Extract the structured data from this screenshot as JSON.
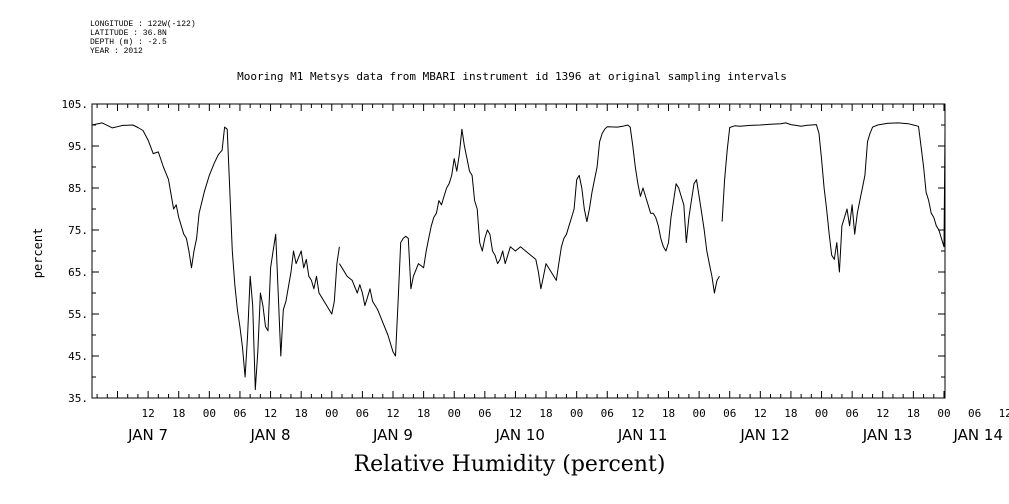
{
  "meta": {
    "longitude": "LONGITUDE : 122W(-122)",
    "latitude": "LATITUDE : 36.8N",
    "depth": "DEPTH (m) : -2.5",
    "year": "YEAR : 2012"
  },
  "chart_data": {
    "type": "line",
    "title": "Mooring M1 Metsys data from MBARI instrument id 1396 at original sampling intervals",
    "xlabel": "Relative Humidity (percent)",
    "ylabel": "percent",
    "ylim": [
      35,
      105
    ],
    "xlim": [
      1,
      168.2
    ],
    "x_unit": "hours since JAN 7 00:00 (2012)",
    "y_ticks": [
      "35.",
      "45.",
      "55.",
      "65.",
      "75.",
      "85.",
      "95.",
      "105."
    ],
    "hour_tick_labels": [
      "12",
      "18",
      "00",
      "06",
      "12",
      "18",
      "00",
      "06",
      "12",
      "18",
      "00",
      "06",
      "12",
      "18",
      "00",
      "06",
      "12",
      "18",
      "00",
      "06",
      "12",
      "18",
      "00",
      "06",
      "12",
      "18",
      "00",
      "06",
      "12",
      "18",
      "00",
      "06"
    ],
    "date_labels": [
      "JAN  7",
      "JAN  8",
      "JAN  9",
      "JAN 10",
      "JAN 11",
      "JAN 12",
      "JAN 13",
      "JAN 14"
    ],
    "series": [
      {
        "name": "",
        "segments": [
          [
            [
              1,
              100
            ],
            [
              3,
              100.5
            ],
            [
              5,
              99.3
            ],
            [
              6,
              99.6
            ],
            [
              7,
              99.9
            ],
            [
              9,
              100
            ],
            [
              10,
              99.4
            ],
            [
              11,
              98.7
            ],
            [
              12,
              96.4
            ],
            [
              13,
              93.2
            ],
            [
              14,
              93.6
            ],
            [
              15,
              90
            ],
            [
              15.5,
              88.5
            ],
            [
              16,
              87
            ],
            [
              17,
              80
            ],
            [
              17.5,
              81
            ],
            [
              18,
              78
            ],
            [
              19,
              74
            ],
            [
              19.5,
              73
            ],
            [
              20,
              70
            ],
            [
              20.5,
              66
            ],
            [
              21,
              70
            ],
            [
              21.5,
              73
            ],
            [
              22,
              79
            ],
            [
              23,
              84
            ],
            [
              24,
              88
            ],
            [
              25,
              91
            ],
            [
              25.8,
              93
            ],
            [
              26.5,
              94
            ],
            [
              27,
              99.5
            ],
            [
              27.5,
              99
            ],
            [
              28,
              85
            ],
            [
              28.5,
              70
            ],
            [
              29,
              62
            ],
            [
              29.5,
              56
            ],
            [
              30,
              52
            ],
            [
              30.5,
              47
            ],
            [
              31,
              40
            ],
            [
              31.5,
              50
            ],
            [
              32,
              64
            ],
            [
              32.5,
              57
            ],
            [
              33,
              37
            ],
            [
              33.5,
              46
            ],
            [
              34,
              60
            ],
            [
              34.5,
              57
            ],
            [
              35,
              52
            ],
            [
              35.5,
              51
            ],
            [
              36,
              66
            ],
            [
              36.5,
              70
            ],
            [
              37,
              74
            ],
            [
              37.5,
              60
            ],
            [
              38,
              45
            ],
            [
              38.5,
              56
            ],
            [
              39,
              58
            ],
            [
              40,
              65
            ],
            [
              40.5,
              70
            ],
            [
              41,
              67
            ],
            [
              42,
              70
            ],
            [
              42.5,
              66
            ],
            [
              43,
              68
            ],
            [
              43.5,
              64
            ],
            [
              44,
              63
            ],
            [
              44.5,
              61
            ],
            [
              45,
              64
            ],
            [
              45.5,
              60
            ],
            [
              46,
              59
            ],
            [
              46.5,
              58
            ],
            [
              47,
              57
            ],
            [
              48,
              55
            ],
            [
              48.5,
              58
            ],
            [
              49,
              67
            ],
            [
              49.5,
              71
            ]
          ],
          [
            [
              49.5,
              67
            ],
            [
              50,
              66
            ],
            [
              51,
              64
            ],
            [
              52,
              63
            ],
            [
              53,
              60
            ],
            [
              53.5,
              62
            ],
            [
              54,
              60
            ],
            [
              54.5,
              57
            ],
            [
              55,
              59
            ],
            [
              55.5,
              61
            ],
            [
              56,
              58
            ],
            [
              57,
              56
            ],
            [
              58,
              53
            ],
            [
              59,
              50
            ],
            [
              60,
              46
            ],
            [
              60.5,
              45
            ],
            [
              61,
              58
            ],
            [
              61.5,
              72
            ],
            [
              62,
              73
            ],
            [
              62.5,
              73.5
            ],
            [
              63,
              73
            ],
            [
              63.5,
              61
            ],
            [
              64,
              64
            ],
            [
              65,
              67
            ],
            [
              66,
              66
            ],
            [
              66.5,
              70
            ],
            [
              67,
              73
            ],
            [
              67.5,
              76
            ],
            [
              68,
              78
            ],
            [
              68.5,
              79
            ],
            [
              69,
              82
            ],
            [
              69.5,
              81
            ],
            [
              70,
              83
            ],
            [
              70.5,
              85
            ],
            [
              71,
              86
            ],
            [
              71.5,
              88
            ],
            [
              72,
              92
            ],
            [
              72.5,
              89
            ],
            [
              73,
              93
            ],
            [
              73.5,
              99
            ],
            [
              74,
              95
            ],
            [
              74.5,
              92
            ],
            [
              75,
              89
            ],
            [
              75.5,
              88
            ],
            [
              76,
              82
            ],
            [
              76.5,
              80
            ],
            [
              77,
              72
            ],
            [
              77.5,
              70
            ],
            [
              78,
              73
            ],
            [
              78.5,
              75
            ],
            [
              79,
              74
            ],
            [
              79.5,
              70
            ],
            [
              80,
              69
            ],
            [
              80.5,
              67
            ],
            [
              81,
              68
            ],
            [
              81.5,
              70
            ],
            [
              82,
              67
            ],
            [
              82.5,
              69
            ],
            [
              83,
              71
            ],
            [
              84,
              70
            ],
            [
              85,
              71
            ],
            [
              86,
              70
            ],
            [
              87,
              69
            ],
            [
              88,
              68
            ],
            [
              88.5,
              65
            ],
            [
              89,
              61
            ],
            [
              89.5,
              64
            ],
            [
              90,
              67
            ],
            [
              91,
              65
            ],
            [
              92,
              63
            ],
            [
              92.5,
              67
            ],
            [
              93,
              71
            ],
            [
              93.5,
              73
            ],
            [
              94,
              74
            ],
            [
              94.5,
              76
            ],
            [
              95,
              78
            ],
            [
              95.5,
              80
            ],
            [
              96,
              87
            ],
            [
              96.5,
              88
            ],
            [
              97,
              85
            ],
            [
              97.5,
              80
            ],
            [
              98,
              77
            ],
            [
              98.5,
              80
            ],
            [
              99,
              84
            ],
            [
              99.5,
              87
            ],
            [
              100,
              90
            ],
            [
              100.5,
              96
            ],
            [
              101,
              98
            ],
            [
              101.5,
              99
            ],
            [
              102,
              99.6
            ],
            [
              104,
              99.5
            ],
            [
              105,
              99.7
            ],
            [
              106,
              100
            ],
            [
              106.5,
              99.5
            ],
            [
              107,
              95
            ],
            [
              107.5,
              90
            ],
            [
              108,
              86
            ],
            [
              108.5,
              83
            ],
            [
              109,
              85
            ],
            [
              109.5,
              83
            ],
            [
              110,
              81
            ],
            [
              110.5,
              79
            ],
            [
              111,
              79
            ],
            [
              111.5,
              78
            ],
            [
              112,
              76
            ],
            [
              112.5,
              73
            ],
            [
              113,
              71
            ],
            [
              113.5,
              70
            ],
            [
              114,
              72
            ],
            [
              114.5,
              78
            ],
            [
              115,
              82
            ],
            [
              115.5,
              86
            ],
            [
              116,
              85
            ],
            [
              116.5,
              83
            ],
            [
              117,
              81
            ],
            [
              117.5,
              72
            ],
            [
              118,
              78
            ],
            [
              118.5,
              82
            ],
            [
              119,
              86
            ],
            [
              119.5,
              87
            ],
            [
              120,
              83
            ],
            [
              120.5,
              79
            ],
            [
              121,
              75
            ],
            [
              121.5,
              70
            ],
            [
              122,
              67
            ],
            [
              122.5,
              64
            ],
            [
              123,
              60
            ],
            [
              123.5,
              63
            ],
            [
              124,
              64
            ]
          ],
          [
            [
              124.5,
              77
            ],
            [
              125,
              87
            ],
            [
              125.5,
              94
            ],
            [
              126,
              99.4
            ],
            [
              127,
              99.8
            ],
            [
              128,
              99.7
            ],
            [
              130,
              99.9
            ],
            [
              132,
              100
            ],
            [
              134,
              100.2
            ],
            [
              136,
              100.3
            ],
            [
              137,
              100.5
            ],
            [
              138,
              100.1
            ],
            [
              139,
              99.9
            ],
            [
              140,
              99.7
            ],
            [
              141,
              99.9
            ],
            [
              142,
              100
            ],
            [
              143,
              100.1
            ],
            [
              143.5,
              98
            ],
            [
              144,
              92
            ],
            [
              144.5,
              85
            ],
            [
              145,
              80
            ],
            [
              145.5,
              74
            ],
            [
              146,
              69
            ],
            [
              146.5,
              68
            ],
            [
              147,
              72
            ],
            [
              147.5,
              65
            ],
            [
              148,
              76
            ],
            [
              148.5,
              78
            ],
            [
              149,
              80
            ],
            [
              149.5,
              76
            ],
            [
              150,
              81
            ],
            [
              150.5,
              74
            ],
            [
              151,
              79
            ],
            [
              151.5,
              82
            ],
            [
              152,
              85
            ],
            [
              152.5,
              88
            ],
            [
              153,
              96
            ],
            [
              153.5,
              98
            ],
            [
              154,
              99.5
            ],
            [
              155,
              100
            ],
            [
              157,
              100.4
            ],
            [
              159,
              100.5
            ],
            [
              161,
              100.3
            ],
            [
              162,
              100
            ],
            [
              163,
              99.7
            ],
            [
              163.5,
              95
            ],
            [
              164,
              90
            ],
            [
              164.5,
              84
            ],
            [
              165,
              82
            ],
            [
              165.5,
              79
            ],
            [
              166,
              78
            ],
            [
              166.5,
              76
            ],
            [
              167,
              75
            ],
            [
              167.5,
              73
            ],
            [
              168,
              71
            ],
            [
              168.2,
              98.5
            ]
          ]
        ]
      }
    ]
  }
}
